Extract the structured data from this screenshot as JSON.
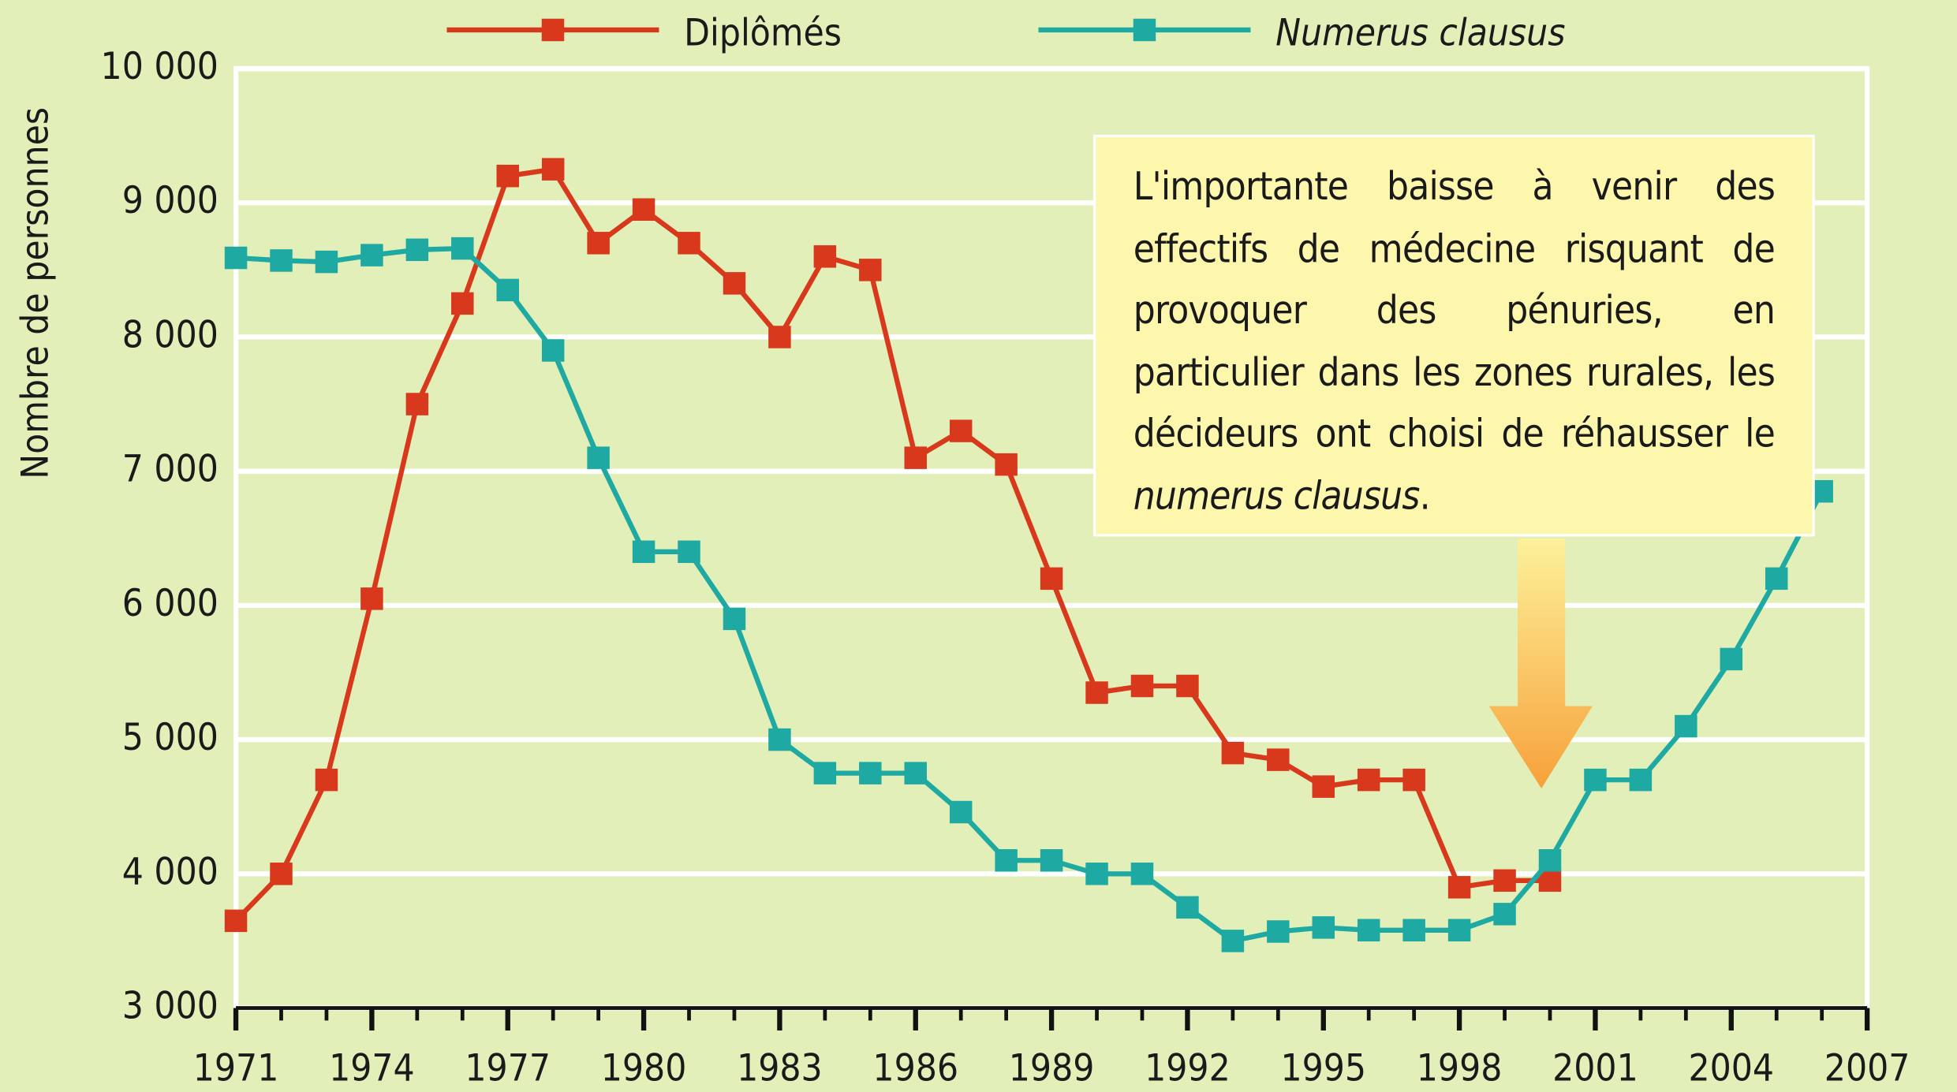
{
  "chart_data": {
    "type": "line",
    "ylabel": "Nombre de personnes",
    "x": [
      1971,
      1972,
      1973,
      1974,
      1975,
      1976,
      1977,
      1978,
      1979,
      1980,
      1981,
      1982,
      1983,
      1984,
      1985,
      1986,
      1987,
      1988,
      1989,
      1990,
      1991,
      1992,
      1993,
      1994,
      1995,
      1996,
      1997,
      1998,
      1999,
      2000,
      2001,
      2002,
      2003,
      2004,
      2005,
      2006
    ],
    "series": [
      {
        "name": "Diplômés",
        "color": "#d8381c",
        "italic": false,
        "values": [
          3650,
          4000,
          4700,
          6050,
          7500,
          8250,
          9200,
          9250,
          8700,
          8950,
          8700,
          8400,
          8000,
          8600,
          8500,
          7100,
          7300,
          7050,
          6200,
          5350,
          5400,
          5400,
          4900,
          4850,
          4650,
          4700,
          4700,
          3900,
          3950,
          3950,
          null,
          null,
          null,
          null,
          null,
          null
        ]
      },
      {
        "name": "Numerus clausus",
        "color": "#1ea9a2",
        "italic": true,
        "values": [
          8590,
          8570,
          8560,
          8610,
          8650,
          8660,
          8350,
          7900,
          7100,
          6400,
          6400,
          5900,
          5000,
          4750,
          4750,
          4750,
          4460,
          4100,
          4100,
          4000,
          4000,
          3750,
          3500,
          3570,
          3600,
          3580,
          3580,
          3580,
          3700,
          4100,
          4700,
          4700,
          5100,
          5600,
          6200,
          6850
        ]
      }
    ],
    "xlim": [
      1971,
      2007
    ],
    "xticks": [
      1971,
      1974,
      1977,
      1980,
      1983,
      1986,
      1989,
      1992,
      1995,
      1998,
      2001,
      2004,
      2007
    ],
    "ylim": [
      3000,
      10000
    ],
    "yticks": [
      {
        "value": 3000,
        "label": "3 000"
      },
      {
        "value": 4000,
        "label": "4 000"
      },
      {
        "value": 5000,
        "label": "5 000"
      },
      {
        "value": 6000,
        "label": "6 000"
      },
      {
        "value": 7000,
        "label": "7 000"
      },
      {
        "value": 8000,
        "label": "8 000"
      },
      {
        "value": 9000,
        "label": "9 000"
      },
      {
        "value": 10000,
        "label": "10 000"
      }
    ],
    "grid": true,
    "annotation": [
      "L'importante baisse à venir des effectifs de médecine risquant de provoquer des pénuries, en particulier dans les zones ru­rales, les décideurs ont choisi de réhausser le ",
      "numerus clausus",
      "."
    ]
  }
}
